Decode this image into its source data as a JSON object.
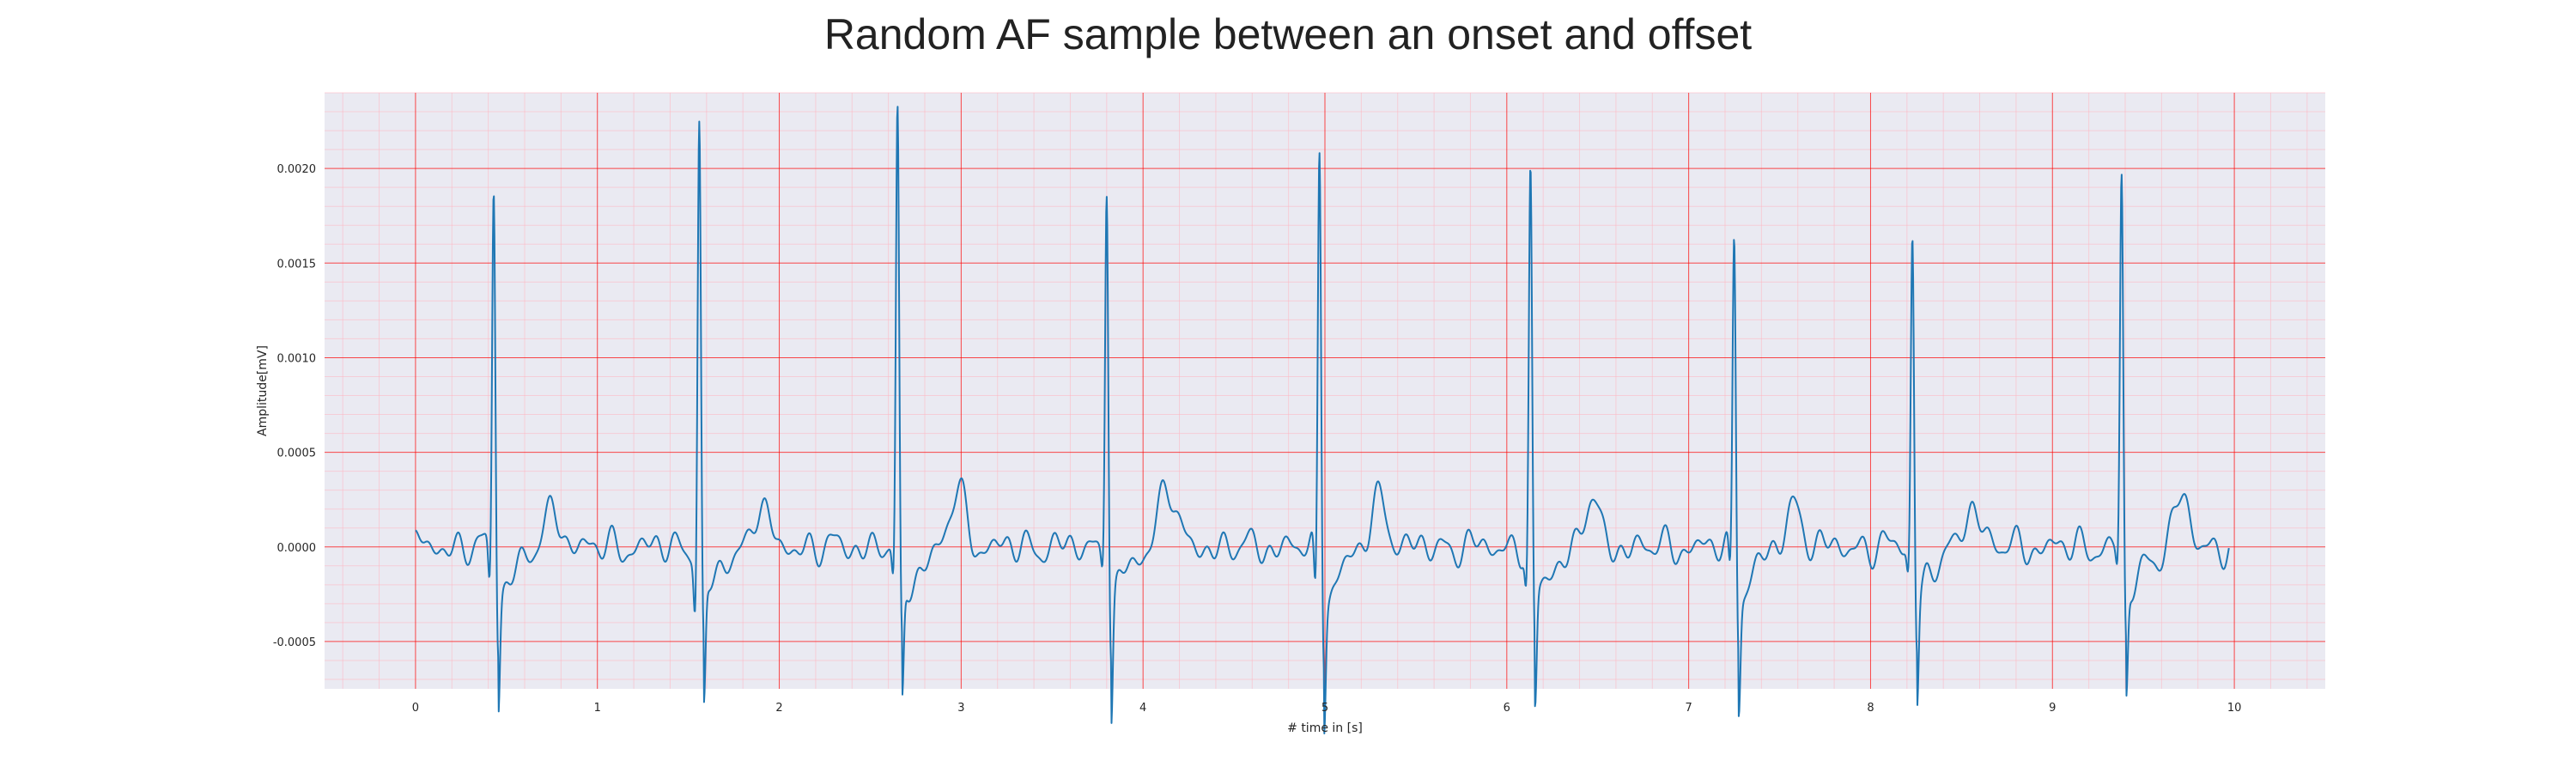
{
  "chart_data": {
    "type": "line",
    "title": "Random AF sample between an onset and offset",
    "xlabel": "# time in [s]",
    "ylabel": "Amplitude[mV]",
    "xlim": [
      -0.5,
      10.5
    ],
    "ylim": [
      -0.00075,
      0.0024
    ],
    "x_ticks": [
      0,
      1,
      2,
      3,
      4,
      5,
      6,
      7,
      8,
      9,
      10
    ],
    "x_tick_labels": [
      "0",
      "1",
      "2",
      "3",
      "4",
      "5",
      "6",
      "7",
      "8",
      "9",
      "10"
    ],
    "y_ticks": [
      -0.0005,
      0,
      0.0005,
      0.001,
      0.0015,
      0.002
    ],
    "y_tick_labels": [
      "-0.0005",
      "0.0000",
      "0.0005",
      "0.0010",
      "0.0015",
      "0.0020"
    ],
    "x_minor_step": 0.2,
    "y_minor_step": 0.0001,
    "grid": true,
    "legend": "none",
    "colors": {
      "background": "#eaeaf2",
      "major_grid": "#ff0000",
      "minor_grid": "#ffb6c1",
      "line": "#1f77b4"
    },
    "series": [
      {
        "color": "#1f77b4",
        "beats": [
          {
            "t": 0.43,
            "r": 0.00193,
            "s": -0.00055,
            "q": -0.00025,
            "tw": 0.0002
          },
          {
            "t": 1.56,
            "r": 0.00225,
            "s": -0.0006,
            "q": -0.00032,
            "tw": 0.00023
          },
          {
            "t": 2.65,
            "r": 0.00227,
            "s": -0.00058,
            "q": -0.0002,
            "tw": 0.0003
          },
          {
            "t": 3.8,
            "r": 0.00198,
            "s": -0.0006,
            "q": -0.0001,
            "tw": 0.00036
          },
          {
            "t": 4.97,
            "r": 0.0021,
            "s": -0.0006,
            "q": -0.00033,
            "tw": 0.00027
          },
          {
            "t": 6.13,
            "r": 0.00196,
            "s": -0.0006,
            "q": -0.00022,
            "tw": 0.00025
          },
          {
            "t": 7.25,
            "r": 0.00165,
            "s": -0.00055,
            "q": -0.0002,
            "tw": 0.00023
          },
          {
            "t": 8.23,
            "r": 0.00167,
            "s": -0.00053,
            "q": -0.00015,
            "tw": 0.00024
          },
          {
            "t": 9.38,
            "r": 0.00194,
            "s": -0.00055,
            "q": -0.00012,
            "tw": 0.00026
          }
        ],
        "x_start": 0.0,
        "x_end": 9.97
      }
    ]
  }
}
